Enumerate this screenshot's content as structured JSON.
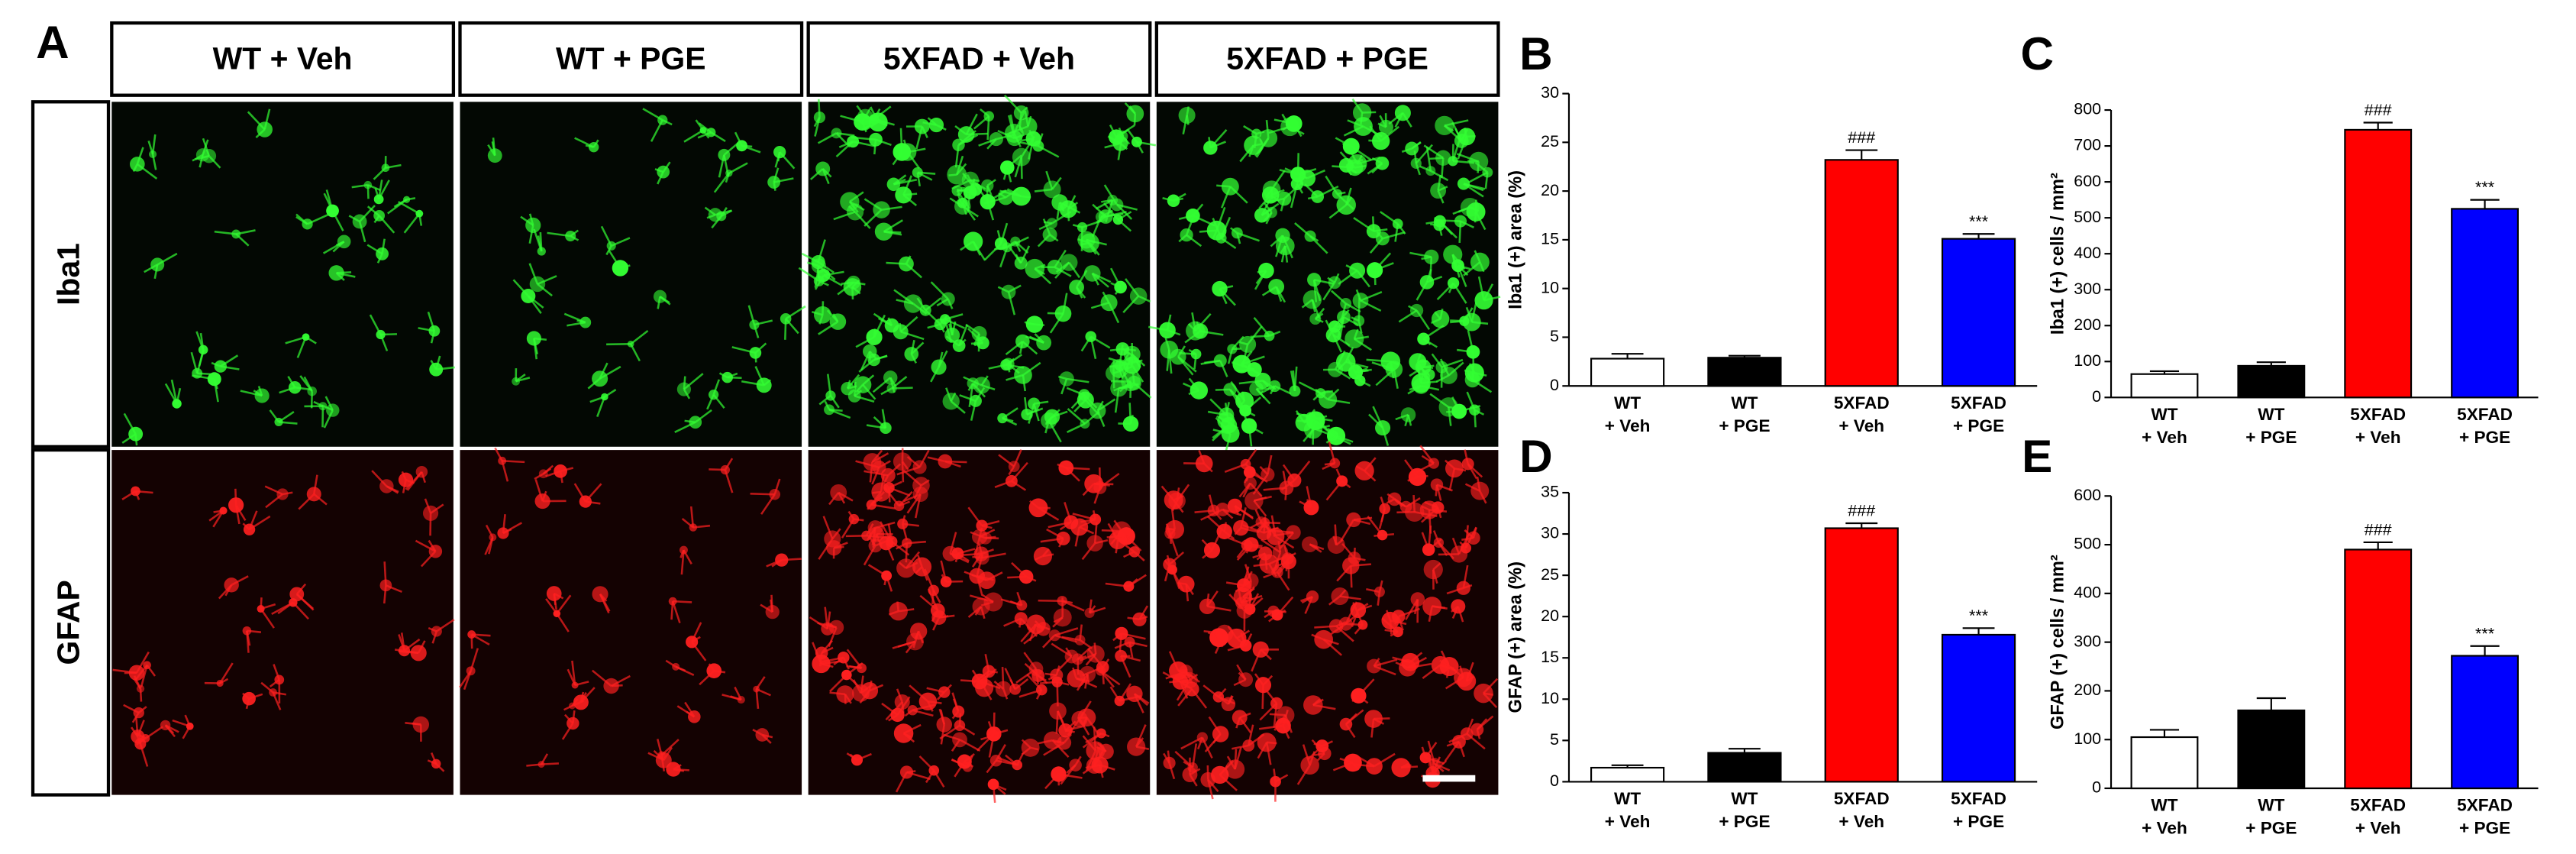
{
  "panel_a": {
    "label": "A",
    "columns": [
      "WT + Veh",
      "WT + PGE",
      "5XFAD + Veh",
      "5XFAD + PGE"
    ],
    "rows": [
      "Iba1",
      "GFAP"
    ]
  },
  "chart_data": [
    {
      "type": "bar",
      "panel": "B",
      "ylabel": "Iba1 (+) area (%)",
      "categories": [
        [
          "WT",
          "+ Veh"
        ],
        [
          "WT",
          "+ PGE"
        ],
        [
          "5XFAD",
          "+ Veh"
        ],
        [
          "5XFAD",
          "+ PGE"
        ]
      ],
      "values": [
        2.8,
        2.9,
        23.2,
        15.1
      ],
      "errors": [
        0.5,
        0.2,
        1.0,
        0.5
      ],
      "colors": [
        "#ffffff",
        "#000000",
        "#ff0000",
        "#0000ff"
      ],
      "significance": [
        null,
        null,
        "###",
        "***"
      ],
      "ylim": [
        0,
        30
      ],
      "yticks": [
        0,
        5,
        10,
        15,
        20,
        25,
        30
      ]
    },
    {
      "type": "bar",
      "panel": "C",
      "ylabel": "Iba1 (+) cells / mm²",
      "categories": [
        [
          "WT",
          "+ Veh"
        ],
        [
          "WT",
          "+ PGE"
        ],
        [
          "5XFAD",
          "+ Veh"
        ],
        [
          "5XFAD",
          "+ PGE"
        ]
      ],
      "values": [
        65,
        88,
        745,
        525
      ],
      "errors": [
        8,
        10,
        20,
        25
      ],
      "colors": [
        "#ffffff",
        "#000000",
        "#ff0000",
        "#0000ff"
      ],
      "significance": [
        null,
        null,
        "###",
        "***"
      ],
      "ylim": [
        0,
        800
      ],
      "yticks": [
        0,
        100,
        200,
        300,
        400,
        500,
        600,
        700,
        800
      ]
    },
    {
      "type": "bar",
      "panel": "D",
      "ylabel": "GFAP (+) area (%)",
      "categories": [
        [
          "WT",
          "+ Veh"
        ],
        [
          "WT",
          "+ PGE"
        ],
        [
          "5XFAD",
          "+ Veh"
        ],
        [
          "5XFAD",
          "+ PGE"
        ]
      ],
      "values": [
        1.7,
        3.5,
        30.7,
        17.8
      ],
      "errors": [
        0.3,
        0.5,
        0.6,
        0.8
      ],
      "colors": [
        "#ffffff",
        "#000000",
        "#ff0000",
        "#0000ff"
      ],
      "significance": [
        null,
        null,
        "###",
        "***"
      ],
      "ylim": [
        0,
        35
      ],
      "yticks": [
        0,
        5,
        10,
        15,
        20,
        25,
        30,
        35
      ]
    },
    {
      "type": "bar",
      "panel": "E",
      "ylabel": "GFAP (+) cells / mm²",
      "categories": [
        [
          "WT",
          "+ Veh"
        ],
        [
          "WT",
          "+ PGE"
        ],
        [
          "5XFAD",
          "+ Veh"
        ],
        [
          "5XFAD",
          "+ PGE"
        ]
      ],
      "values": [
        105,
        160,
        490,
        272
      ],
      "errors": [
        15,
        25,
        15,
        20
      ],
      "colors": [
        "#ffffff",
        "#000000",
        "#ff0000",
        "#0000ff"
      ],
      "significance": [
        null,
        null,
        "###",
        "***"
      ],
      "ylim": [
        0,
        600
      ],
      "yticks": [
        0,
        100,
        200,
        300,
        400,
        500,
        600
      ]
    }
  ]
}
